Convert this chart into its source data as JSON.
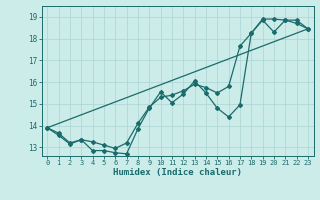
{
  "xlabel": "Humidex (Indice chaleur)",
  "background_color": "#ccecea",
  "grid_color": "#b0d8d6",
  "line_color": "#1a6b6b",
  "xlim": [
    -0.5,
    23.5
  ],
  "ylim": [
    12.6,
    19.5
  ],
  "xticks": [
    0,
    1,
    2,
    3,
    4,
    5,
    6,
    7,
    8,
    9,
    10,
    11,
    12,
    13,
    14,
    15,
    16,
    17,
    18,
    19,
    20,
    21,
    22,
    23
  ],
  "yticks": [
    13,
    14,
    15,
    16,
    17,
    18,
    19
  ],
  "line1_x": [
    0,
    1,
    2,
    3,
    4,
    5,
    6,
    7,
    8,
    9,
    10,
    11,
    12,
    13,
    14,
    15,
    16,
    17,
    18,
    19,
    20,
    21,
    22,
    23
  ],
  "line1_y": [
    13.9,
    13.65,
    13.2,
    13.35,
    12.85,
    12.85,
    12.75,
    12.7,
    13.85,
    14.8,
    15.55,
    15.05,
    15.45,
    16.05,
    15.5,
    14.8,
    14.4,
    14.95,
    18.25,
    18.85,
    18.3,
    18.85,
    18.85,
    18.45
  ],
  "line2_x": [
    0,
    1,
    2,
    3,
    4,
    5,
    6,
    7,
    8,
    9,
    10,
    11,
    12,
    13,
    14,
    15,
    16,
    17,
    18,
    19,
    20,
    21,
    22,
    23
  ],
  "line2_y": [
    13.9,
    13.55,
    13.15,
    13.35,
    13.25,
    13.1,
    12.95,
    13.2,
    14.1,
    14.85,
    15.3,
    15.4,
    15.6,
    15.9,
    15.75,
    15.5,
    15.8,
    17.65,
    18.25,
    18.9,
    18.9,
    18.85,
    18.7,
    18.45
  ],
  "line3_x": [
    0,
    23
  ],
  "line3_y": [
    13.9,
    18.45
  ]
}
